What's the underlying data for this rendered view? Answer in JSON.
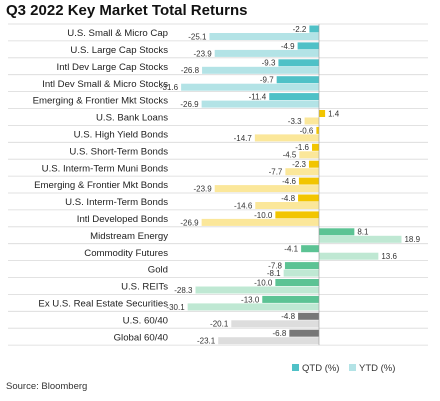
{
  "title": "Q3 2022 Key Market Total Returns",
  "source": "Source: Bloomberg",
  "chart_data": {
    "type": "bar",
    "orientation": "horizontal",
    "categories": [
      "U.S. Small & Micro Cap",
      "U.S. Large Cap Stocks",
      "Intl Dev Large Cap Stocks",
      "Intl Dev Small & Micro Stocks",
      "Emerging & Frontier Mkt Stocks",
      "U.S. Bank Loans",
      "U.S. High Yield Bonds",
      "U.S. Short-Term Bonds",
      "U.S. Interm-Term Muni Bonds",
      "Emerging & Frontier Mkt Bonds",
      "U.S. Interm-Term Bonds",
      "Intl Developed Bonds",
      "Midstream Energy",
      "Commodity Futures",
      "Gold",
      "U.S. REITs",
      "Ex U.S. Real Estate Securities",
      "U.S. 60/40",
      "Global 60/40"
    ],
    "groups": [
      "equity",
      "equity",
      "equity",
      "equity",
      "equity",
      "fixed_income",
      "fixed_income",
      "fixed_income",
      "fixed_income",
      "fixed_income",
      "fixed_income",
      "fixed_income",
      "real_assets",
      "real_assets",
      "real_assets",
      "real_assets",
      "real_assets",
      "balanced",
      "balanced"
    ],
    "series": [
      {
        "name": "QTD (%)",
        "values": [
          -2.2,
          -4.9,
          -9.3,
          -9.7,
          -11.4,
          1.4,
          -0.6,
          -1.6,
          -2.3,
          -4.6,
          -4.8,
          -10.0,
          8.1,
          -4.1,
          -7.8,
          -10.0,
          -13.0,
          -4.8,
          -6.8
        ],
        "labels": [
          "-2.2",
          "-4.9",
          "-9.3",
          "-9.7",
          "-11.4",
          "1.4",
          "-0.6",
          "-1.6",
          "-2.3",
          "-4.6",
          "-4.8",
          "-10.0",
          "8.1",
          "-4.1",
          "-7.8",
          "-10.0",
          "-13.0",
          "-4.8",
          "-6.8"
        ]
      },
      {
        "name": "YTD (%)",
        "values": [
          -25.1,
          -23.9,
          -26.8,
          -31.6,
          -26.9,
          -3.3,
          -14.7,
          -4.5,
          -7.7,
          -23.9,
          -14.6,
          -26.9,
          18.9,
          13.6,
          -8.1,
          -28.3,
          -30.1,
          -20.1,
          -23.1
        ],
        "labels": [
          "-25.1",
          "-23.9",
          "-26.8",
          "-31.6",
          "-26.9",
          "-3.3",
          "-14.7",
          "-4.5",
          "-7.7",
          "-23.9",
          "-14.6",
          "-26.9",
          "18.9",
          "13.6",
          "-8.1",
          "-28.3",
          "-30.1",
          "-20.1",
          "-23.1"
        ]
      }
    ],
    "xlim": [
      -33,
      22
    ],
    "gridlines": "horizontal row separators",
    "legend_position": "bottom-right",
    "colors": {
      "equity": {
        "QTD (%)": "#4fc1c7",
        "YTD (%)": "#b3e3e6"
      },
      "fixed_income": {
        "QTD (%)": "#f2c500",
        "YTD (%)": "#fbe79a"
      },
      "real_assets": {
        "QTD (%)": "#5cc394",
        "YTD (%)": "#bfe8d3"
      },
      "balanced": {
        "QTD (%)": "#777777",
        "YTD (%)": "#dddddd"
      }
    },
    "legend": [
      {
        "label": "QTD (%)",
        "color": "#4fc1c7"
      },
      {
        "label": "YTD (%)",
        "color": "#b3e3e6"
      }
    ]
  }
}
